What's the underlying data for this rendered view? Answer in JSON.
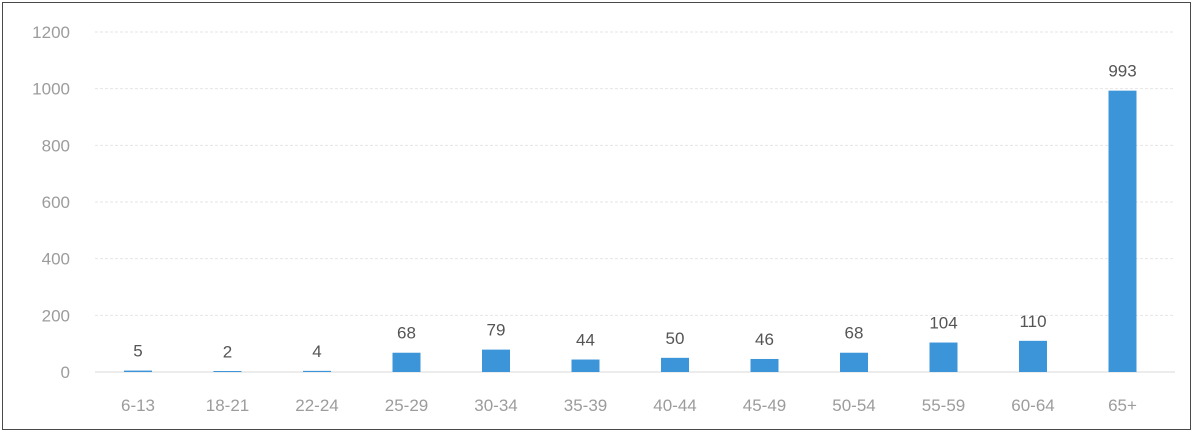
{
  "chart_data": {
    "type": "bar",
    "title": "",
    "xlabel": "",
    "ylabel": "",
    "categories": [
      "6-13",
      "18-21",
      "22-24",
      "25-29",
      "30-34",
      "35-39",
      "40-44",
      "45-49",
      "50-54",
      "55-59",
      "60-64",
      "65+"
    ],
    "values": [
      5,
      2,
      4,
      68,
      79,
      44,
      50,
      46,
      68,
      104,
      110,
      993
    ],
    "data_labels": [
      "5",
      "2",
      "4",
      "68",
      "79",
      "44",
      "50",
      "46",
      "68",
      "104",
      "110",
      "993"
    ],
    "ylim": [
      0,
      1200
    ],
    "yticks": [
      0,
      200,
      400,
      600,
      800,
      1000,
      1200
    ],
    "ytick_labels": [
      "0",
      "200",
      "400",
      "600",
      "800",
      "1000",
      "1200"
    ],
    "grid": true,
    "legend": "none",
    "bar_color": "#3c95d9"
  }
}
